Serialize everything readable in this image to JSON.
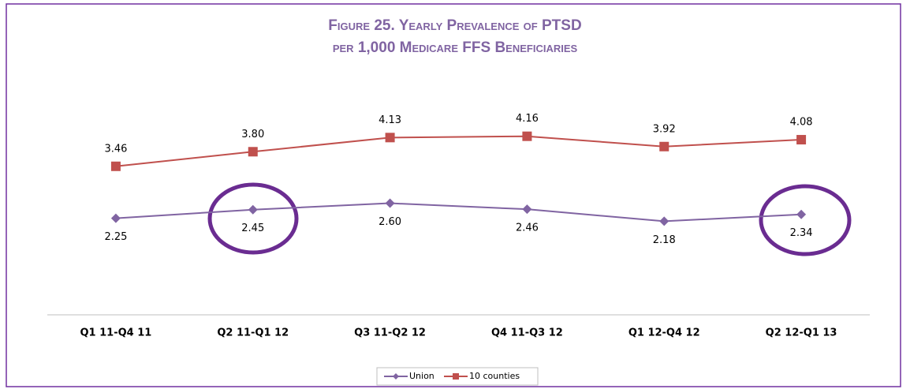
{
  "chart_data": {
    "type": "line",
    "title": [
      "Figure 25. Yearly Prevalence of PTSD",
      "per 1,000 Medicare FFS Beneficiaries"
    ],
    "categories": [
      "Q1 11-Q4 11",
      "Q2 11-Q1 12",
      "Q3 11-Q2 12",
      "Q4 11-Q3 12",
      "Q1 12-Q4 12",
      "Q2 12-Q1 13"
    ],
    "series": [
      {
        "name": "Union",
        "color": "#8064a2",
        "marker": "diamond",
        "values": [
          2.25,
          2.45,
          2.6,
          2.46,
          2.18,
          2.34
        ],
        "value_labels": [
          "2.25",
          "2.45",
          "2.60",
          "2.46",
          "2.18",
          "2.34"
        ]
      },
      {
        "name": "10 counties",
        "color": "#c0504d",
        "marker": "square",
        "values": [
          3.46,
          3.8,
          4.13,
          4.16,
          3.92,
          4.08
        ],
        "value_labels": [
          "3.46",
          "3.80",
          "4.13",
          "4.16",
          "3.92",
          "4.08"
        ]
      }
    ],
    "ylim": [
      0,
      5
    ],
    "legend": "bottom"
  }
}
